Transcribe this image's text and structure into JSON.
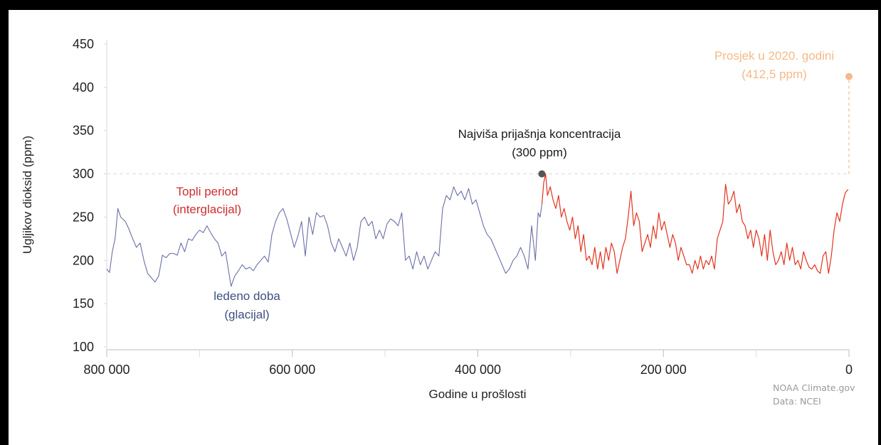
{
  "chart_data": {
    "type": "line",
    "xlabel": "Godine u prošlosti",
    "ylabel": "Ugljikov dioksid (ppm)",
    "xlim": [
      800000,
      0
    ],
    "ylim": [
      100,
      450
    ],
    "x_ticks": [
      {
        "value": 800000,
        "label": "800 000"
      },
      {
        "value": 600000,
        "label": "600 000"
      },
      {
        "value": 400000,
        "label": "400 000"
      },
      {
        "value": 200000,
        "label": "200 000"
      },
      {
        "value": 0,
        "label": "0"
      }
    ],
    "x_minor_ticks": [
      700000,
      500000,
      300000,
      100000
    ],
    "y_ticks": [
      {
        "value": 100,
        "label": "100"
      },
      {
        "value": 150,
        "label": "150"
      },
      {
        "value": 200,
        "label": "200"
      },
      {
        "value": 250,
        "label": "250"
      },
      {
        "value": 300,
        "label": "300"
      },
      {
        "value": 350,
        "label": "350"
      },
      {
        "value": 400,
        "label": "400"
      },
      {
        "value": 450,
        "label": "450"
      }
    ],
    "reference_line": {
      "y": 300,
      "style": "dashed"
    },
    "series": [
      {
        "color": "#6b6fa8",
        "x": [
          800000,
          797000,
          794000,
          791000,
          788000,
          785000,
          780000,
          776000,
          772000,
          768000,
          764000,
          760000,
          756000,
          752000,
          748000,
          744000,
          740000,
          736000,
          732000,
          728000,
          724000,
          720000,
          716000,
          712000,
          708000,
          704000,
          700000,
          696000,
          692000,
          688000,
          684000,
          680000,
          676000,
          672000,
          669000,
          666000,
          662000,
          658000,
          654000,
          650000,
          646000,
          642000,
          638000,
          634000,
          630000,
          626000,
          622000,
          618000,
          614000,
          610000,
          606000,
          602000,
          598000,
          594000,
          590000,
          586000,
          582000,
          578000,
          574000,
          570000,
          566000,
          562000,
          558000,
          554000,
          550000,
          546000,
          542000,
          538000,
          534000,
          530000,
          526000,
          522000,
          518000,
          514000,
          510000,
          506000,
          502000,
          498000,
          494000,
          490000,
          486000,
          482000,
          478000,
          474000,
          470000,
          466000,
          462000,
          458000,
          454000,
          450000,
          446000,
          442000,
          438000,
          434000,
          430000,
          426000,
          422000,
          418000,
          414000,
          410000,
          406000,
          402000,
          398000,
          394000,
          390000,
          386000,
          382000,
          378000,
          374000,
          370000,
          366000,
          362000,
          358000,
          354000,
          350000,
          346000,
          342000,
          338000,
          335000,
          333000,
          331000
        ],
        "y": [
          190,
          186,
          210,
          225,
          260,
          250,
          245,
          236,
          225,
          215,
          220,
          200,
          185,
          180,
          175,
          182,
          206,
          203,
          208,
          208,
          206,
          220,
          210,
          225,
          223,
          230,
          235,
          232,
          240,
          232,
          225,
          220,
          205,
          210,
          190,
          170,
          182,
          188,
          195,
          190,
          192,
          188,
          195,
          200,
          205,
          198,
          230,
          245,
          255,
          260,
          248,
          232,
          215,
          228,
          245,
          205,
          250,
          230,
          255,
          250,
          252,
          240,
          220,
          210,
          225,
          215,
          205,
          220,
          200,
          215,
          245,
          250,
          240,
          245,
          225,
          235,
          225,
          242,
          248,
          245,
          240,
          255,
          200,
          205,
          190,
          210,
          195,
          205,
          190,
          200,
          210,
          205,
          260,
          275,
          270,
          285,
          275,
          280,
          270,
          283,
          265,
          270,
          255,
          240,
          230,
          225,
          215,
          205,
          195,
          185,
          190,
          200,
          205,
          215,
          205,
          190,
          240,
          200,
          255,
          250,
          265
        ],
        "line_width": 1.1
      },
      {
        "color": "#e2341f",
        "x": [
          331000,
          329000,
          327000,
          325000,
          322000,
          319000,
          316000,
          313000,
          310000,
          307000,
          304000,
          301000,
          298000,
          295000,
          292000,
          289000,
          286000,
          283000,
          280000,
          277000,
          274000,
          271000,
          268000,
          265000,
          262000,
          259000,
          256000,
          253000,
          250000,
          247000,
          244000,
          241000,
          238000,
          235000,
          232000,
          229000,
          226000,
          223000,
          220000,
          217000,
          214000,
          211000,
          208000,
          205000,
          202000,
          199000,
          196000,
          193000,
          190000,
          187000,
          184000,
          181000,
          178000,
          175000,
          172000,
          169000,
          166000,
          163000,
          160000,
          157000,
          154000,
          151000,
          148000,
          145000,
          142000,
          139000,
          136000,
          133000,
          130000,
          127000,
          124000,
          121000,
          118000,
          115000,
          112000,
          109000,
          106000,
          103000,
          100000,
          97000,
          94000,
          91000,
          88000,
          85000,
          82000,
          79000,
          76000,
          73000,
          70000,
          67000,
          64000,
          61000,
          58000,
          55000,
          52000,
          49000,
          46000,
          43000,
          40000,
          37000,
          34000,
          31000,
          28000,
          25000,
          22000,
          19000,
          16000,
          13000,
          10000,
          7000,
          4000,
          1000
        ],
        "y": [
          265,
          290,
          300,
          275,
          285,
          270,
          260,
          275,
          250,
          260,
          245,
          235,
          250,
          225,
          240,
          210,
          230,
          200,
          205,
          195,
          215,
          190,
          210,
          190,
          215,
          200,
          220,
          210,
          185,
          200,
          215,
          225,
          250,
          280,
          240,
          255,
          245,
          210,
          220,
          230,
          215,
          240,
          225,
          255,
          235,
          245,
          230,
          215,
          230,
          220,
          200,
          215,
          205,
          195,
          195,
          185,
          200,
          190,
          205,
          190,
          200,
          195,
          205,
          190,
          225,
          235,
          245,
          288,
          265,
          270,
          280,
          255,
          265,
          245,
          240,
          225,
          235,
          215,
          235,
          225,
          205,
          230,
          200,
          235,
          210,
          195,
          200,
          210,
          195,
          220,
          200,
          215,
          195,
          200,
          190,
          210,
          200,
          192,
          190,
          195,
          188,
          185,
          205,
          210,
          185,
          205,
          235,
          255,
          245,
          265,
          278,
          282
        ],
        "line_width": 1.2
      },
      {
        "color": "#f5b98a",
        "x": [
          0,
          0
        ],
        "y": [
          300,
          412.5
        ],
        "style": "dashed"
      }
    ],
    "points": [
      {
        "x": 331000,
        "y": 300,
        "color": "#555555"
      },
      {
        "x": 0,
        "y": 412.5,
        "color": "#f5b98a"
      }
    ],
    "annotations": [
      {
        "lines": [
          "Najviša prijašnja koncentracija",
          "(300 ppm)"
        ],
        "color": "#1a1a1a"
      },
      {
        "lines": [
          "Prosjek u 2020. godini",
          "(412,5 ppm)"
        ],
        "color": "#f5b98a"
      },
      {
        "lines": [
          "Topli period",
          "(interglacijal)"
        ],
        "color": "#cf2e2e"
      },
      {
        "lines": [
          "ledeno doba",
          "(glacijal)"
        ],
        "color": "#3e4f80"
      }
    ],
    "grid": false,
    "legend": "none"
  },
  "credit": {
    "line1": "NOAA Climate.gov",
    "line2": "Data: NCEI"
  }
}
